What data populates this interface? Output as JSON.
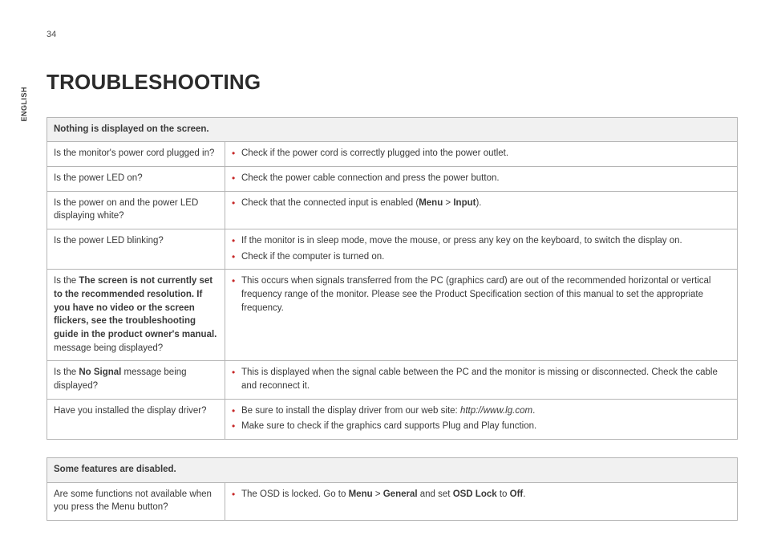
{
  "page_number": "34",
  "language_tab": "ENGLISH",
  "heading": "TROUBLESHOOTING",
  "table1": {
    "header": "Nothing is displayed on the screen.",
    "rows": [
      {
        "q_html": "Is the monitor's power cord plugged in?",
        "a_items": [
          "Check if the power cord is correctly plugged into the power outlet."
        ]
      },
      {
        "q_html": "Is the power LED on?",
        "a_items": [
          "Check the power cable connection and press the power button."
        ]
      },
      {
        "q_html": "Is the power on and the power LED displaying white?",
        "a_items": [
          "Check that the connected input is enabled (<span class=\"b\">Menu</span> > <span class=\"b\">Input</span>)."
        ]
      },
      {
        "q_html": "Is the power LED blinking?",
        "a_items": [
          "If the monitor is in sleep mode, move the mouse, or press any key on the keyboard, to switch the display on.",
          "Check if the computer is turned on."
        ]
      },
      {
        "q_html": "Is the <span class=\"b\">The screen is not currently set to the recommended resolution. If you have no video or the screen flickers, see the troubleshooting guide in the product owner's manual.</span> message being displayed?",
        "a_items": [
          "This occurs when signals transferred from the PC (graphics card) are out of the recommended horizontal or vertical frequency range of the monitor. Please see the Product Specification section of this manual to set the appropriate frequency."
        ]
      },
      {
        "q_html": "Is the <span class=\"b\">No Signal</span> message being displayed?",
        "a_items": [
          "This is displayed when the signal cable between the PC and the monitor is missing or disconnected. Check the cable and reconnect it."
        ]
      },
      {
        "q_html": "Have you installed the display driver?",
        "a_items": [
          "Be sure to install the display driver from our web site: <span class=\"i\">http://www.lg.com</span>.",
          "Make sure to check if the graphics card supports Plug and Play function."
        ]
      }
    ]
  },
  "table2": {
    "header": "Some features are disabled.",
    "rows": [
      {
        "q_html": "Are some functions not available when you press the Menu button?",
        "a_items": [
          "The OSD is locked. Go to <span class=\"b\">Menu</span> > <span class=\"b\">General</span> and set <span class=\"b\">OSD Lock</span> to <span class=\"b\">Off</span>."
        ]
      }
    ]
  }
}
